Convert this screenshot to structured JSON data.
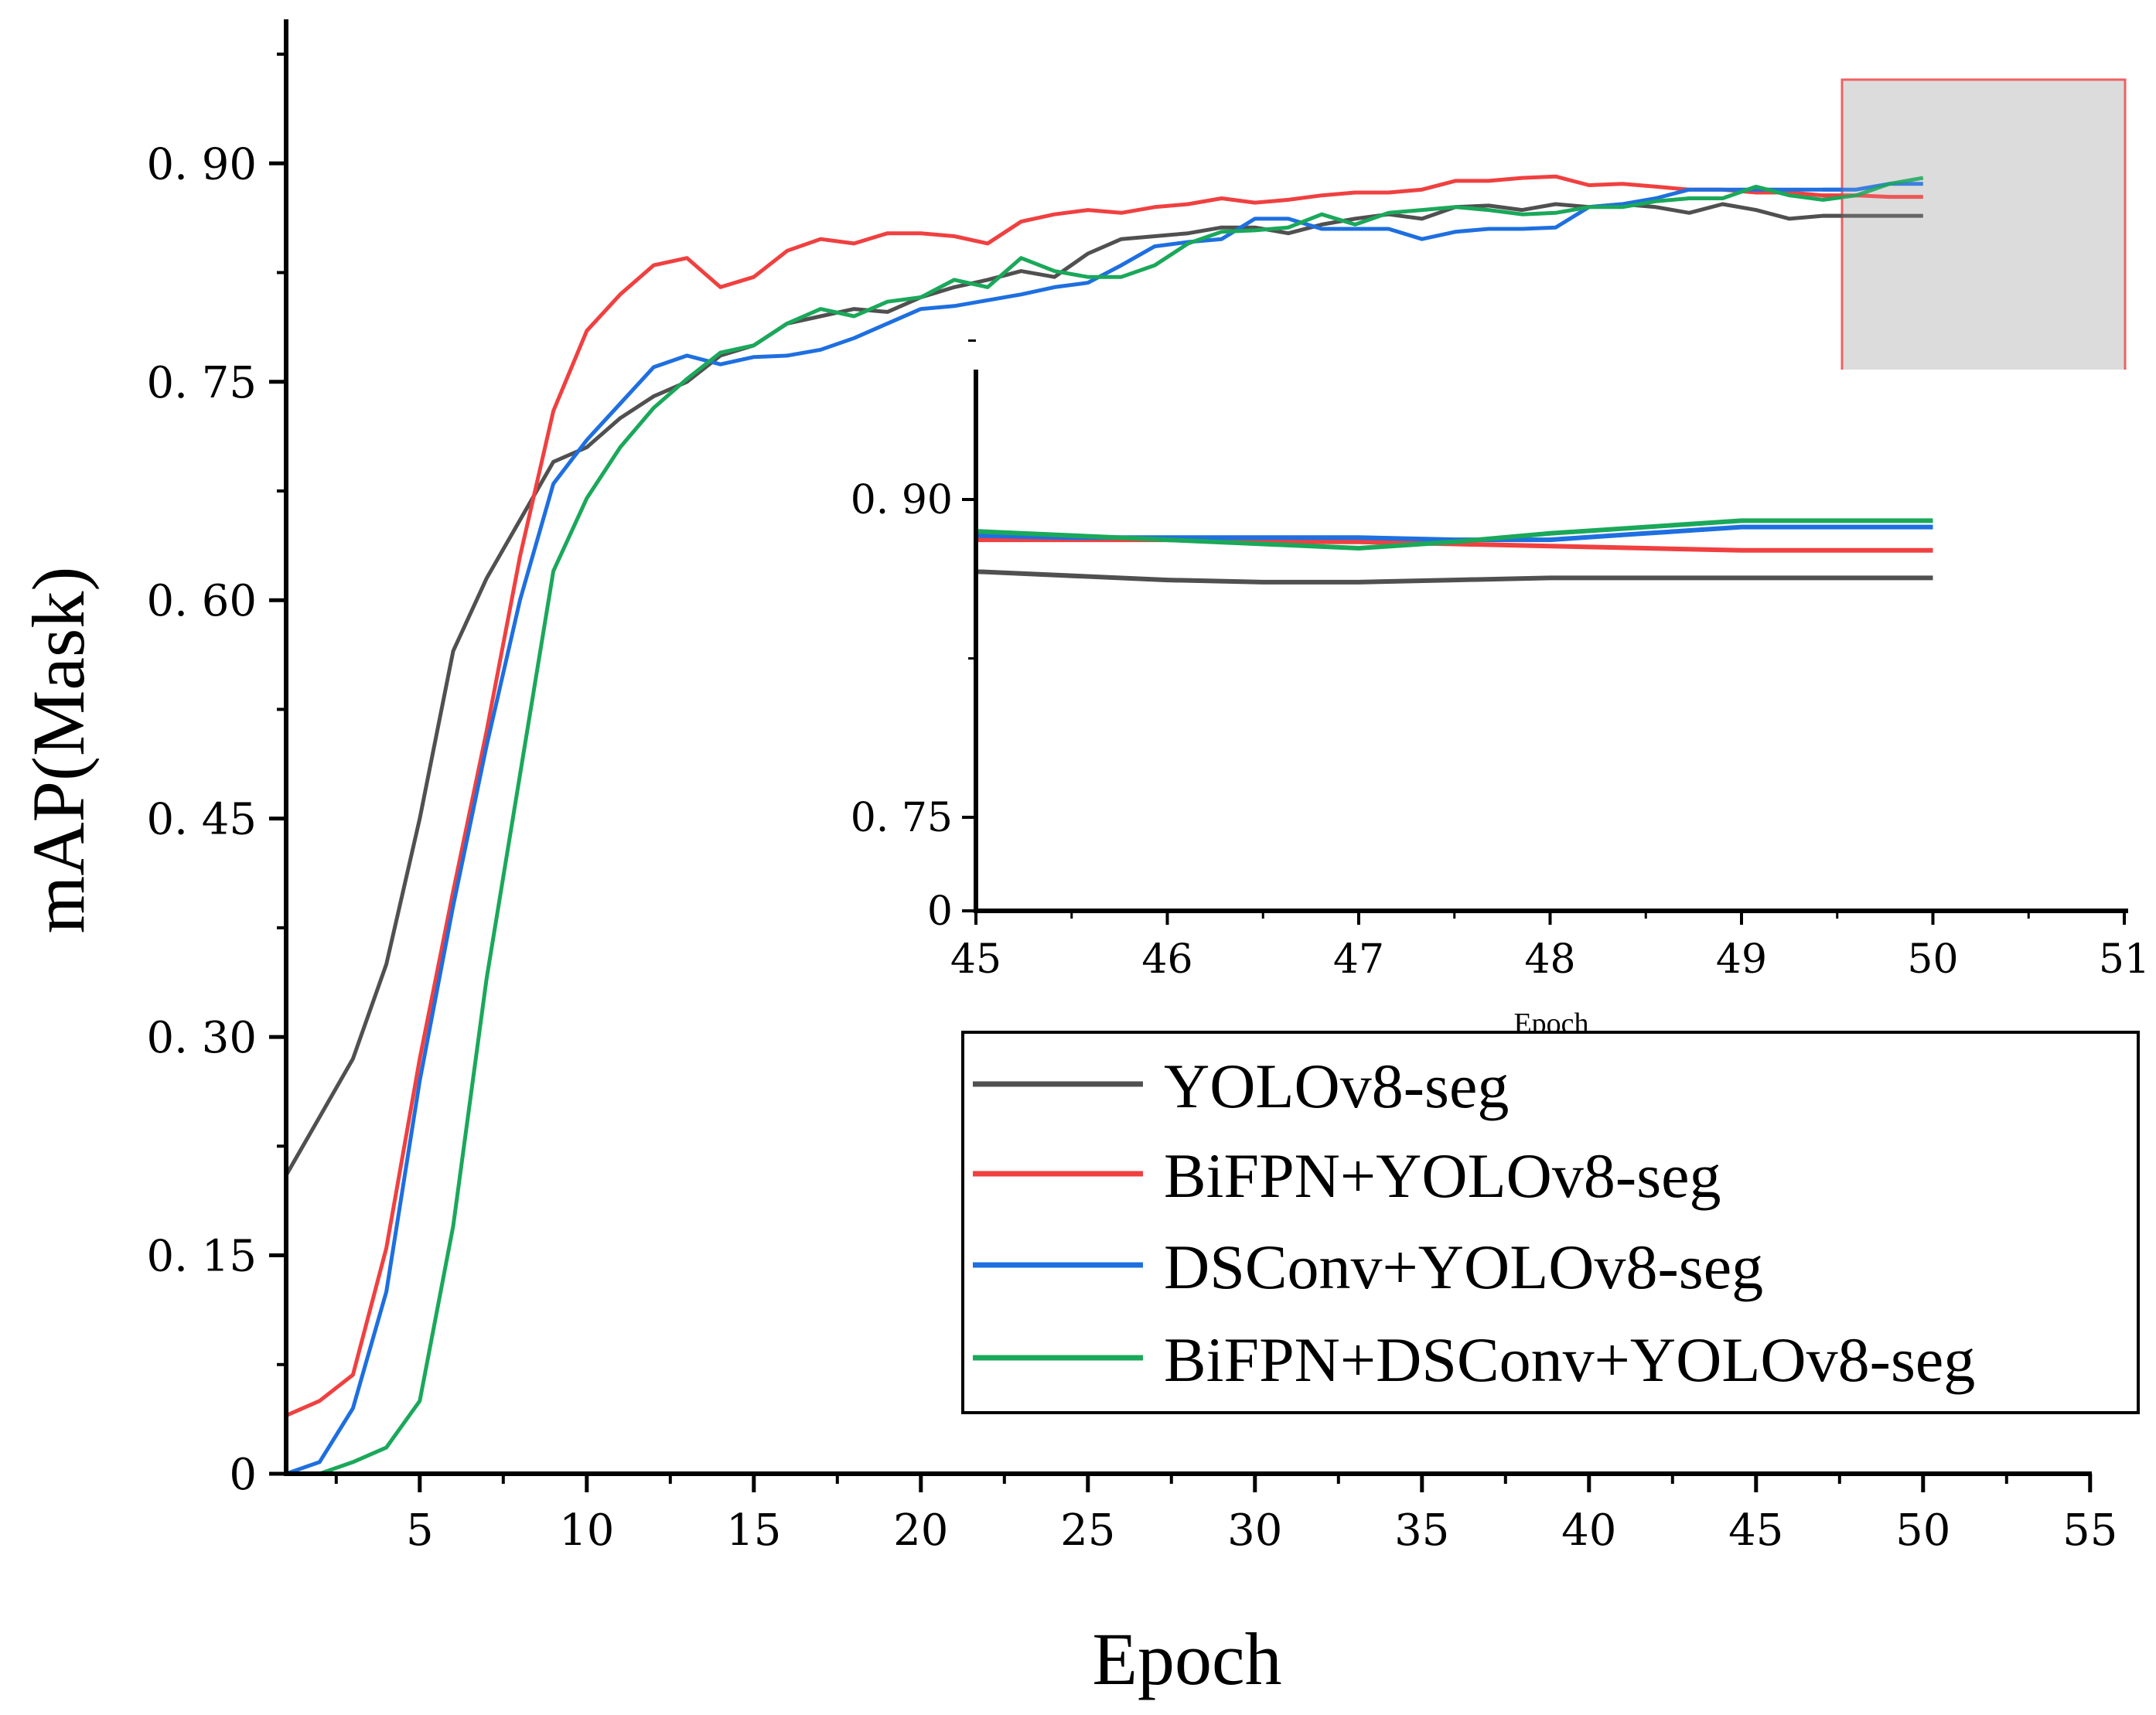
{
  "chart_data": {
    "type": "line",
    "xlabel": "Epoch",
    "ylabel": "mAP(Mask)",
    "xlim": [
      1,
      55
    ],
    "ylim": [
      0,
      1.0
    ],
    "x_ticks": [
      "5",
      "10",
      "15",
      "20",
      "25",
      "30",
      "35",
      "40",
      "45",
      "50",
      "55"
    ],
    "y_ticks": [
      "0",
      "0. 15",
      "0. 30",
      "0. 45",
      "0. 60",
      "0. 75",
      "0. 90"
    ],
    "colors": {
      "YOLOv8-seg": "#505050",
      "BiFPN+YOLOv8-seg": "#f04040",
      "DSConv+YOLOv8-seg": "#1e6fe0",
      "BiFPN+DSConv+YOLOv8-seg": "#1aa85a"
    },
    "series": [
      {
        "name": "YOLOv8-seg",
        "x": [
          1,
          2,
          3,
          4,
          5,
          6,
          7,
          8,
          9,
          10,
          11,
          12,
          13,
          14,
          15,
          16,
          17,
          18,
          19,
          20,
          21,
          22,
          23,
          24,
          25,
          26,
          27,
          28,
          29,
          30,
          31,
          32,
          33,
          34,
          35,
          36,
          37,
          38,
          39,
          40,
          41,
          42,
          43,
          44,
          45,
          46,
          47,
          48,
          49,
          50
        ],
        "values": [
          0.205,
          0.245,
          0.285,
          0.35,
          0.45,
          0.565,
          0.615,
          0.655,
          0.695,
          0.705,
          0.725,
          0.74,
          0.75,
          0.768,
          0.775,
          0.79,
          0.795,
          0.8,
          0.798,
          0.808,
          0.815,
          0.82,
          0.826,
          0.822,
          0.838,
          0.848,
          0.85,
          0.852,
          0.856,
          0.856,
          0.852,
          0.858,
          0.862,
          0.865,
          0.862,
          0.87,
          0.871,
          0.868,
          0.872,
          0.87,
          0.872,
          0.87,
          0.866,
          0.872,
          0.868,
          0.862,
          0.864,
          0.864,
          0.864,
          0.864
        ]
      },
      {
        "name": "BiFPN+YOLOv8-seg",
        "x": [
          1,
          2,
          3,
          4,
          5,
          6,
          7,
          8,
          9,
          10,
          11,
          12,
          13,
          14,
          15,
          16,
          17,
          18,
          19,
          20,
          21,
          22,
          23,
          24,
          25,
          26,
          27,
          28,
          29,
          30,
          31,
          32,
          33,
          34,
          35,
          36,
          37,
          38,
          39,
          40,
          41,
          42,
          43,
          44,
          45,
          46,
          47,
          48,
          49,
          50
        ],
        "values": [
          0.04,
          0.05,
          0.068,
          0.155,
          0.285,
          0.4,
          0.51,
          0.63,
          0.73,
          0.785,
          0.81,
          0.83,
          0.835,
          0.815,
          0.822,
          0.84,
          0.848,
          0.845,
          0.852,
          0.852,
          0.85,
          0.845,
          0.86,
          0.865,
          0.868,
          0.866,
          0.87,
          0.872,
          0.876,
          0.873,
          0.875,
          0.878,
          0.88,
          0.88,
          0.882,
          0.888,
          0.888,
          0.89,
          0.891,
          0.885,
          0.886,
          0.884,
          0.882,
          0.882,
          0.88,
          0.88,
          0.878,
          0.878,
          0.877,
          0.877
        ]
      },
      {
        "name": "DSConv+YOLOv8-seg",
        "x": [
          1,
          2,
          3,
          4,
          5,
          6,
          7,
          8,
          9,
          10,
          11,
          12,
          13,
          14,
          15,
          16,
          17,
          18,
          19,
          20,
          21,
          22,
          23,
          24,
          25,
          26,
          27,
          28,
          29,
          30,
          31,
          32,
          33,
          34,
          35,
          36,
          37,
          38,
          39,
          40,
          41,
          42,
          43,
          44,
          45,
          46,
          47,
          48,
          49,
          50
        ],
        "values": [
          0.0,
          0.008,
          0.045,
          0.125,
          0.27,
          0.39,
          0.5,
          0.6,
          0.68,
          0.71,
          0.735,
          0.76,
          0.768,
          0.762,
          0.767,
          0.768,
          0.772,
          0.78,
          0.79,
          0.8,
          0.802,
          0.806,
          0.81,
          0.815,
          0.818,
          0.83,
          0.843,
          0.846,
          0.848,
          0.862,
          0.862,
          0.855,
          0.855,
          0.855,
          0.848,
          0.853,
          0.855,
          0.855,
          0.856,
          0.87,
          0.872,
          0.876,
          0.882,
          0.882,
          0.882,
          0.882,
          0.882,
          0.882,
          0.886,
          0.886
        ]
      },
      {
        "name": "BiFPN+DSConv+YOLOv8-seg",
        "x": [
          1,
          2,
          3,
          4,
          5,
          6,
          7,
          8,
          9,
          10,
          11,
          12,
          13,
          14,
          15,
          16,
          17,
          18,
          19,
          20,
          21,
          22,
          23,
          24,
          25,
          26,
          27,
          28,
          29,
          30,
          31,
          32,
          33,
          34,
          35,
          36,
          37,
          38,
          39,
          40,
          41,
          42,
          43,
          44,
          45,
          46,
          47,
          48,
          49,
          50
        ],
        "values": [
          0.0,
          0.0,
          0.008,
          0.018,
          0.05,
          0.17,
          0.34,
          0.48,
          0.62,
          0.67,
          0.705,
          0.732,
          0.752,
          0.77,
          0.775,
          0.79,
          0.8,
          0.795,
          0.805,
          0.808,
          0.82,
          0.815,
          0.835,
          0.826,
          0.822,
          0.822,
          0.83,
          0.845,
          0.853,
          0.854,
          0.856,
          0.865,
          0.858,
          0.866,
          0.868,
          0.87,
          0.868,
          0.865,
          0.866,
          0.87,
          0.87,
          0.874,
          0.876,
          0.876,
          0.884,
          0.878,
          0.875,
          0.878,
          0.886,
          0.89
        ]
      }
    ],
    "inset": {
      "xlabel": "Epoch",
      "xlim": [
        45,
        51
      ],
      "x_ticks": [
        "45",
        "46",
        "47",
        "48",
        "49",
        "50",
        "51"
      ],
      "y_ticks": [
        "0",
        "0. 75",
        "0. 90"
      ],
      "series": [
        {
          "name": "YOLOv8-seg",
          "x": [
            45,
            46,
            46.5,
            47,
            47.5,
            48,
            48.5,
            49,
            49.5,
            50
          ],
          "values": [
            0.866,
            0.862,
            0.861,
            0.861,
            0.862,
            0.863,
            0.863,
            0.863,
            0.863,
            0.863
          ]
        },
        {
          "name": "BiFPN+YOLOv8-seg",
          "x": [
            45,
            45.5,
            46,
            46.5,
            47,
            47.5,
            48,
            48.5,
            49,
            49.5,
            50
          ],
          "values": [
            0.881,
            0.881,
            0.881,
            0.88,
            0.88,
            0.879,
            0.878,
            0.877,
            0.876,
            0.876,
            0.876
          ]
        },
        {
          "name": "DSConv+YOLOv8-seg",
          "x": [
            45,
            45.5,
            46,
            46.5,
            47,
            47.5,
            48,
            48.5,
            49,
            49.5,
            50
          ],
          "values": [
            0.883,
            0.882,
            0.882,
            0.882,
            0.882,
            0.881,
            0.881,
            0.884,
            0.887,
            0.887,
            0.887
          ]
        },
        {
          "name": "BiFPN+DSConv+YOLOv8-seg",
          "x": [
            45,
            45.5,
            46,
            46.5,
            47,
            47.5,
            48,
            48.5,
            49,
            49.5,
            50
          ],
          "values": [
            0.885,
            0.883,
            0.881,
            0.879,
            0.877,
            0.88,
            0.884,
            0.887,
            0.89,
            0.89,
            0.89
          ]
        }
      ]
    },
    "legend": [
      "YOLOv8-seg",
      "BiFPN+YOLOv8-seg",
      "DSConv+YOLOv8-seg",
      "BiFPN+DSConv+YOLOv8-seg"
    ]
  }
}
